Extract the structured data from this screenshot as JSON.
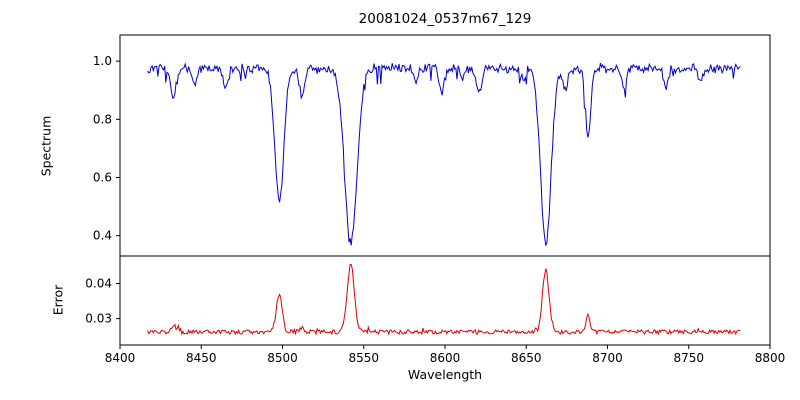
{
  "chart_data": [
    {
      "type": "line",
      "title": "20081024_0537m67_129",
      "xlabel": "",
      "ylabel": "Spectrum",
      "xlim": [
        8400,
        8800
      ],
      "ylim": [
        0.33,
        1.09
      ],
      "ytick_values": [
        0.4,
        0.6,
        0.8,
        1.0
      ],
      "ytick_labels": [
        "0.4",
        "0.6",
        "0.8",
        "1.0"
      ],
      "grid": false,
      "legend": "none",
      "color": "#0000cc",
      "x_data_range": [
        8417,
        8782
      ],
      "continuum": 0.975,
      "noise_amplitude": 0.012,
      "absorption_lines": [
        {
          "center": 8433,
          "depth": 0.1,
          "width": 1.5
        },
        {
          "center": 8446,
          "depth": 0.05,
          "width": 1.3
        },
        {
          "center": 8465,
          "depth": 0.07,
          "width": 1.5
        },
        {
          "center": 8498,
          "depth": 0.455,
          "width": 2.8
        },
        {
          "center": 8512,
          "depth": 0.1,
          "width": 1.5
        },
        {
          "center": 8542,
          "depth": 0.605,
          "width": 3.8
        },
        {
          "center": 8582,
          "depth": 0.05,
          "width": 1.4
        },
        {
          "center": 8598,
          "depth": 0.08,
          "width": 1.5
        },
        {
          "center": 8611,
          "depth": 0.04,
          "width": 1.3
        },
        {
          "center": 8621,
          "depth": 0.08,
          "width": 1.5
        },
        {
          "center": 8648,
          "depth": 0.04,
          "width": 1.3
        },
        {
          "center": 8662,
          "depth": 0.61,
          "width": 3.2
        },
        {
          "center": 8674,
          "depth": 0.08,
          "width": 1.5
        },
        {
          "center": 8688,
          "depth": 0.23,
          "width": 1.6
        },
        {
          "center": 8710,
          "depth": 0.06,
          "width": 1.4
        },
        {
          "center": 8736,
          "depth": 0.06,
          "width": 1.4
        },
        {
          "center": 8757,
          "depth": 0.05,
          "width": 1.4
        }
      ]
    },
    {
      "type": "line",
      "title": "",
      "xlabel": "Wavelength",
      "ylabel": "Error",
      "xlim": [
        8400,
        8800
      ],
      "ylim": [
        0.0225,
        0.0478
      ],
      "ytick_values": [
        0.03,
        0.04
      ],
      "ytick_labels": [
        "0.03",
        "0.04"
      ],
      "xtick_values": [
        8400,
        8450,
        8500,
        8550,
        8600,
        8650,
        8700,
        8750,
        8800
      ],
      "xtick_labels": [
        "8400",
        "8450",
        "8500",
        "8550",
        "8600",
        "8650",
        "8700",
        "8750",
        "8800"
      ],
      "grid": false,
      "legend": "none",
      "color": "#dd0000",
      "x_data_range": [
        8417,
        8782
      ],
      "baseline": 0.0262,
      "noise_amplitude": 0.0005,
      "peaks": [
        {
          "center": 8433,
          "height": 0.0018,
          "width": 1.5
        },
        {
          "center": 8498,
          "height": 0.0108,
          "width": 1.8
        },
        {
          "center": 8512,
          "height": 0.0012,
          "width": 1.5
        },
        {
          "center": 8542,
          "height": 0.0192,
          "width": 2.2
        },
        {
          "center": 8662,
          "height": 0.0175,
          "width": 2.0
        },
        {
          "center": 8688,
          "height": 0.005,
          "width": 1.2
        }
      ]
    }
  ]
}
